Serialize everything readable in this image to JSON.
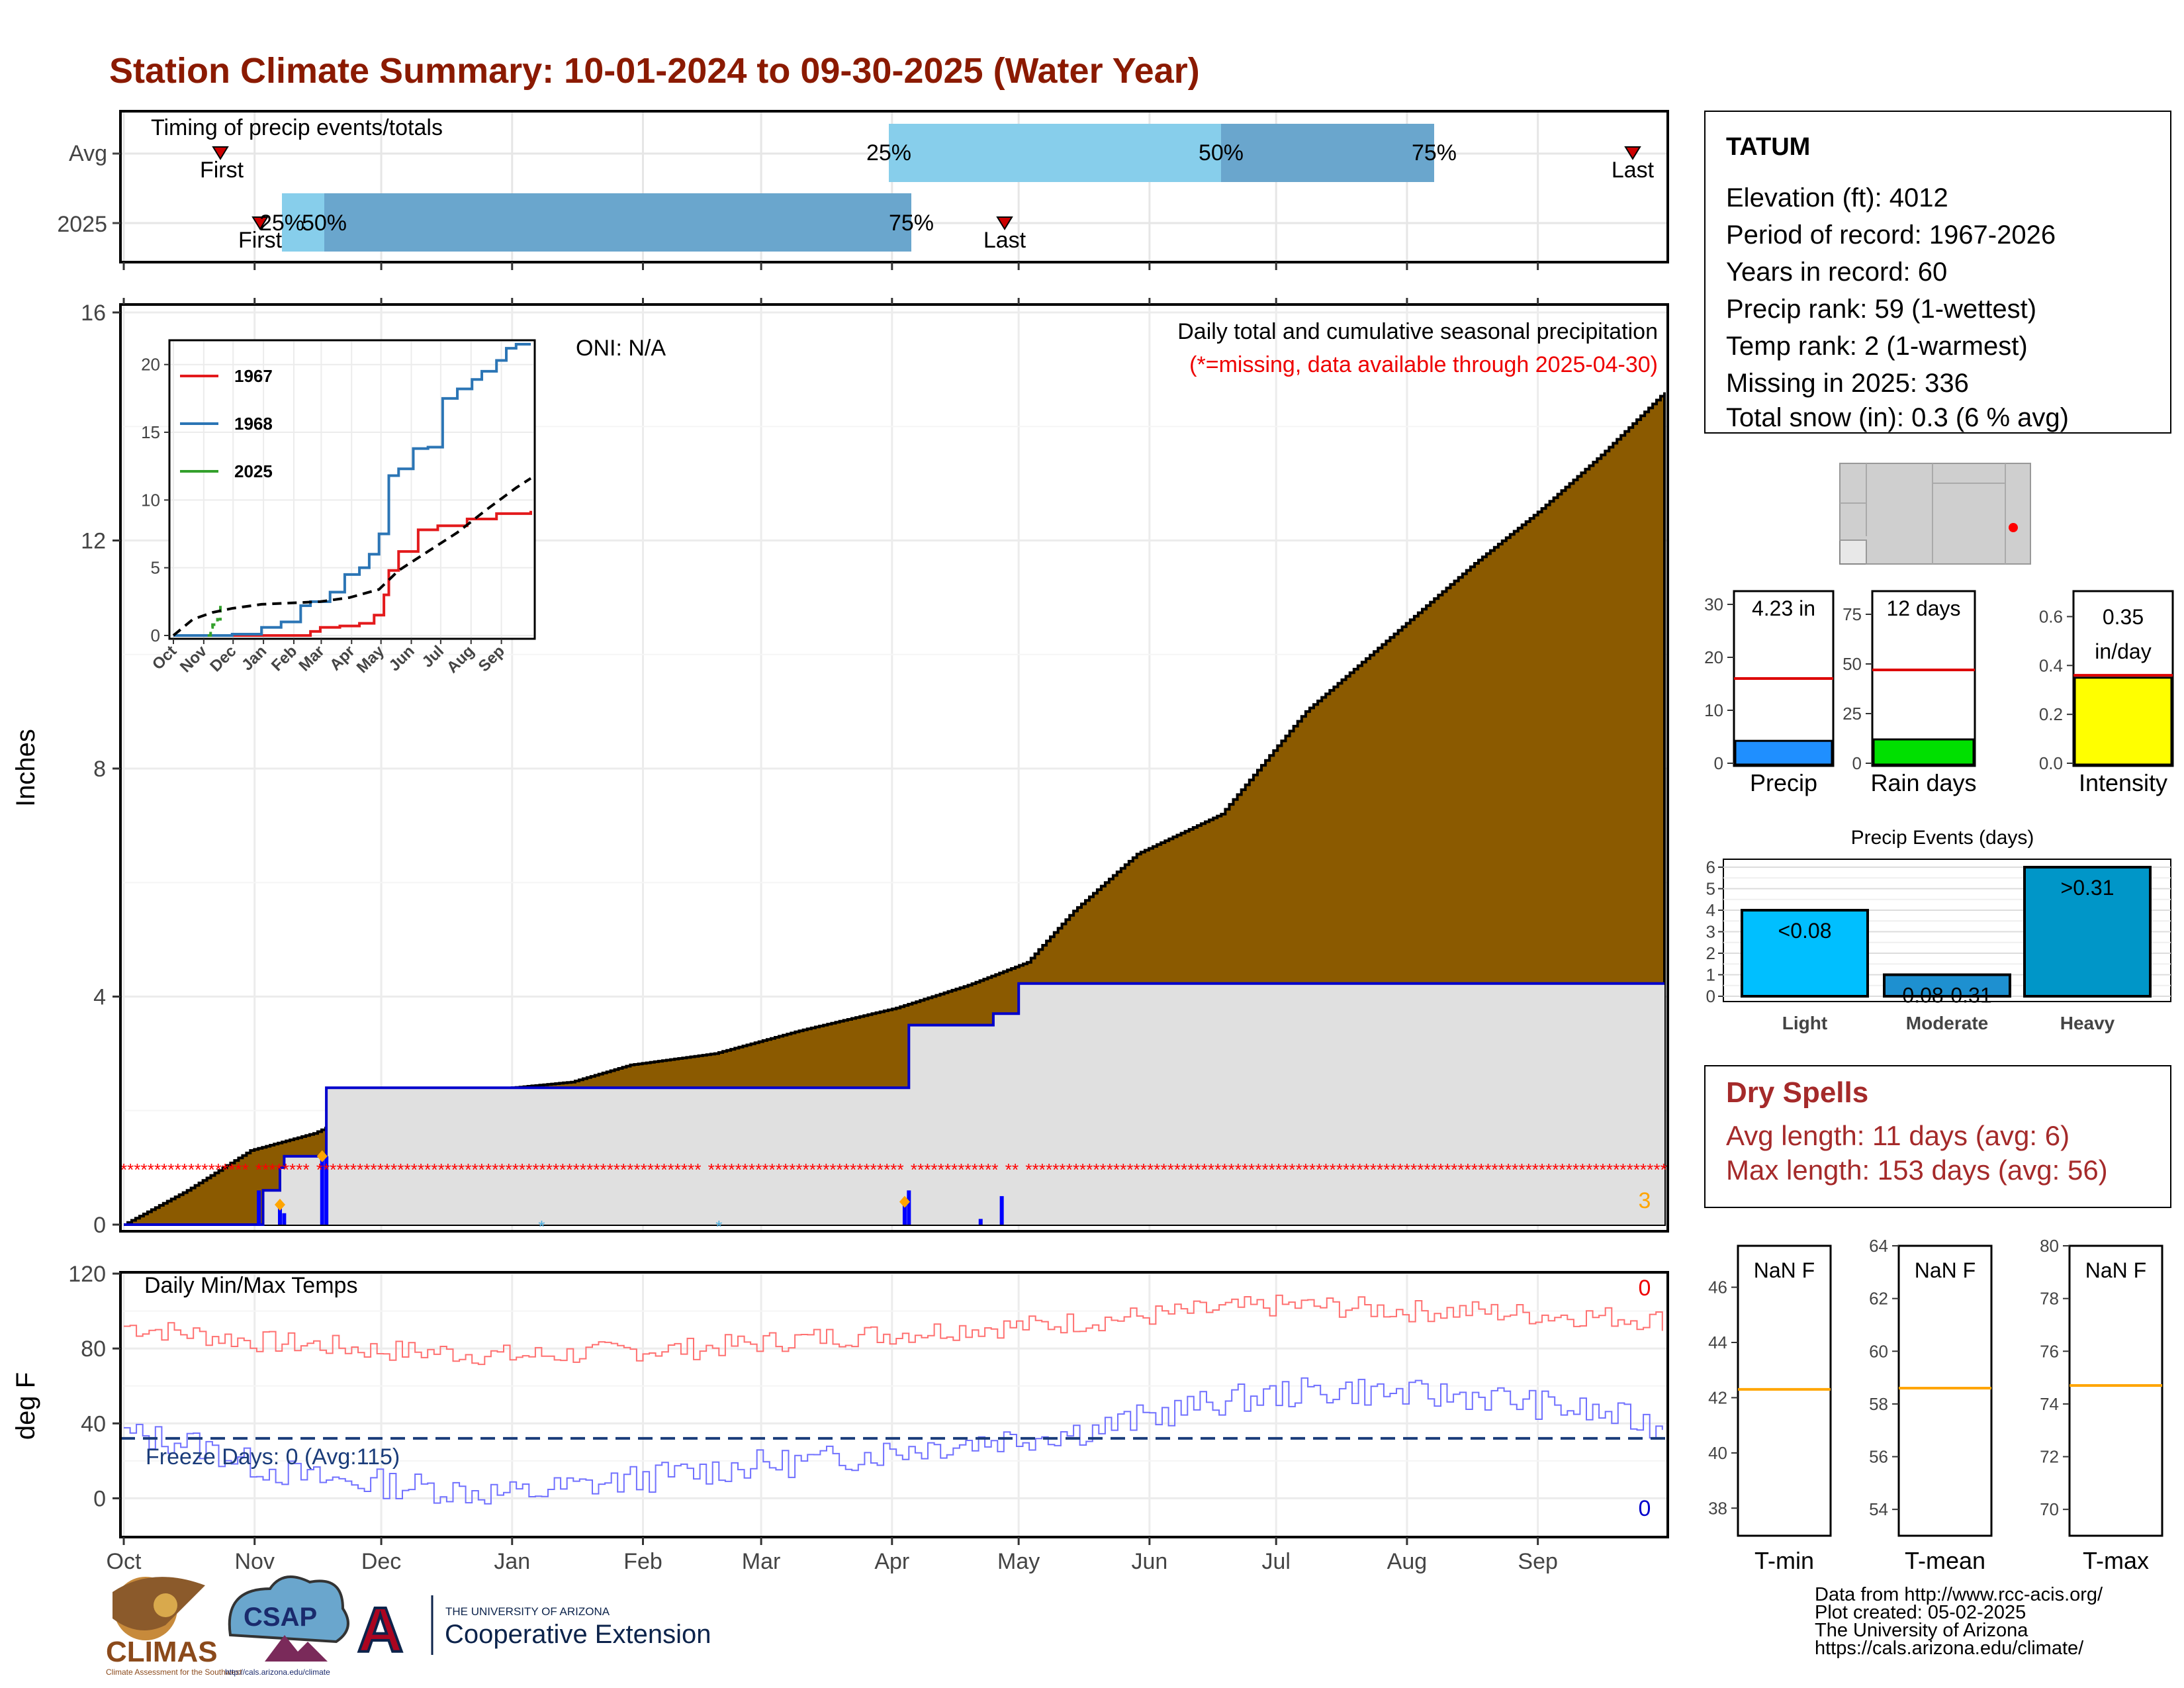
{
  "title": "Station Climate Summary: 10-01-2024 to 09-30-2025 (Water Year)",
  "colors": {
    "title": "#8b1a00",
    "cum_avg": "#8b5a00",
    "cum_2025_above": "#008000",
    "cum_2025_line": "#0000cc",
    "missing": "#ff0000",
    "tmax": "#ff6666",
    "tmin": "#6666ff",
    "dry": "#a52a2a"
  },
  "months": [
    "Oct",
    "Nov",
    "Dec",
    "Jan",
    "Feb",
    "Mar",
    "Apr",
    "May",
    "Jun",
    "Jul",
    "Aug",
    "Sep"
  ],
  "timing": {
    "label": "Timing of precip events/totals",
    "rows": [
      "Avg",
      "2025"
    ],
    "avg": {
      "first": "First",
      "last": "Last",
      "p25": "25%",
      "p50": "50%",
      "p75": "75%"
    },
    "y2025": {
      "first": "First",
      "last": "Last",
      "p25": "25%",
      "p50": "50%",
      "p75": "75%"
    }
  },
  "precip_panel": {
    "ylabel": "Inches",
    "yticks": [
      "0",
      "4",
      "8",
      "12",
      "16"
    ],
    "heading": "Daily total and cumulative seasonal precipitation",
    "missing_note": "(*=missing, data available through 2025-04-30)",
    "oni": "ONI: N/A",
    "count_label": "3"
  },
  "chart_data": [
    {
      "type": "area",
      "name": "cumulative precipitation",
      "x_unit": "day of water year",
      "avg_cumulative": {
        "x": [
          0,
          15,
          30,
          45,
          60,
          75,
          92,
          106,
          120,
          140,
          160,
          183,
          200,
          214,
          225,
          240,
          260,
          280,
          300,
          320,
          335,
          350,
          365
        ],
        "y": [
          0,
          0.6,
          1.3,
          1.6,
          2.1,
          2.3,
          2.4,
          2.5,
          2.8,
          3.0,
          3.4,
          3.8,
          4.2,
          4.6,
          5.5,
          6.5,
          7.2,
          9.0,
          10.3,
          11.6,
          12.5,
          13.5,
          14.6
        ]
      },
      "y2025_cumulative": {
        "x": [
          0,
          32,
          33,
          35,
          37,
          38,
          43,
          47,
          48,
          185,
          186,
          203,
          206,
          208,
          212,
          365
        ],
        "y": [
          0,
          0,
          0.6,
          0.6,
          1.0,
          1.2,
          1.2,
          1.2,
          2.4,
          2.4,
          3.5,
          3.5,
          3.7,
          3.7,
          4.23,
          4.23
        ]
      },
      "ylim": [
        0,
        16
      ]
    },
    {
      "type": "line",
      "name": "inset cumulative",
      "series": [
        {
          "name": "1967",
          "x": [
            0,
            120,
            140,
            150,
            160,
            170,
            190,
            205,
            215,
            220,
            230,
            250,
            270,
            300,
            330,
            365
          ],
          "y": [
            0,
            0,
            0.3,
            0.6,
            0.6,
            0.7,
            0.9,
            1.5,
            3.0,
            4.8,
            6.2,
            7.8,
            8.1,
            8.6,
            9.0,
            9.2
          ]
        },
        {
          "name": "1968",
          "x": [
            0,
            60,
            90,
            110,
            130,
            140,
            160,
            175,
            190,
            200,
            210,
            220,
            230,
            245,
            260,
            275,
            290,
            305,
            315,
            330,
            340,
            350,
            365
          ],
          "y": [
            0,
            0.1,
            0.6,
            1.0,
            2.2,
            2.5,
            3.2,
            4.5,
            5.0,
            6.0,
            7.5,
            11.8,
            12.3,
            13.8,
            13.9,
            17.5,
            18.2,
            18.9,
            19.5,
            20.3,
            21.2,
            21.5,
            21.5
          ]
        },
        {
          "name": "2025",
          "x": [
            35,
            38,
            40,
            45,
            48
          ],
          "y": [
            0.0,
            0.6,
            0.8,
            1.2,
            2.4
          ]
        },
        {
          "name": "",
          "dashed": true,
          "x": [
            0,
            20,
            40,
            60,
            90,
            120,
            150,
            180,
            210,
            230,
            260,
            290,
            320,
            350,
            365
          ],
          "y": [
            0,
            1.2,
            1.7,
            2.0,
            2.3,
            2.4,
            2.5,
            2.8,
            3.4,
            4.8,
            6.2,
            7.6,
            9.3,
            10.9,
            11.6
          ]
        }
      ],
      "ylim": [
        0,
        21.5
      ],
      "yticks": [
        "0",
        "5",
        "10",
        "15",
        "20"
      ],
      "xticks": [
        "Oct",
        "Nov",
        "Dec",
        "Jan",
        "Feb",
        "Mar",
        "Apr",
        "May",
        "Jun",
        "Jul",
        "Aug",
        "Sep"
      ]
    },
    {
      "type": "line",
      "name": "Daily Min/Max Temps",
      "tmax": {
        "x": [
          0,
          15,
          30,
          45,
          60,
          75,
          92,
          106,
          120,
          135,
          150,
          165,
          183,
          200,
          214,
          230,
          245,
          260,
          275,
          290,
          305,
          320,
          335,
          350,
          365
        ],
        "y": [
          92,
          88,
          84,
          82,
          79,
          78,
          76,
          77,
          79,
          80,
          83,
          86,
          88,
          91,
          92,
          95,
          98,
          101,
          103,
          102,
          100,
          100,
          98,
          97,
          95
        ]
      },
      "tmin": {
        "x": [
          0,
          15,
          30,
          45,
          60,
          75,
          92,
          106,
          120,
          135,
          150,
          165,
          183,
          200,
          214,
          230,
          245,
          260,
          275,
          290,
          305,
          320,
          335,
          350,
          365
        ],
        "y": [
          34,
          30,
          18,
          10,
          8,
          5,
          2,
          6,
          10,
          14,
          18,
          20,
          26,
          30,
          33,
          37,
          45,
          52,
          56,
          58,
          55,
          55,
          50,
          45,
          38
        ]
      },
      "freeze_line": 32,
      "ylim": [
        -20,
        120
      ]
    }
  ],
  "temps_panel": {
    "label": "Daily Min/Max Temps",
    "ylabel": "deg F",
    "yticks": [
      "0",
      "40",
      "80",
      "120"
    ],
    "freeze_label": "Freeze Days: 0 (Avg:115)",
    "tmax_missing_count": "0",
    "tmin_missing_count": "0"
  },
  "station": {
    "name": "TATUM",
    "lines": [
      "Elevation (ft): 4012",
      "Period of record: 1967-2026",
      "Years in record: 60",
      "Precip rank: 59 (1-wettest)",
      "Temp rank: 2 (1-warmest)",
      "Missing in 2025: 336",
      "Total snow (in): 0.3 (6 % avg)"
    ]
  },
  "bars": [
    {
      "name": "Precip",
      "value_label": "4.23 in",
      "value": 4.23,
      "avg": 16,
      "ymax": 30,
      "yticks": [
        "0",
        "10",
        "20",
        "30"
      ],
      "color": "#1f8fff"
    },
    {
      "name": "Rain days",
      "value_label": "12 days",
      "value": 12,
      "avg": 47,
      "ymax": 80,
      "yticks": [
        "0",
        "25",
        "50",
        "75"
      ],
      "color": "#00e000"
    },
    {
      "name": "Intensity",
      "value_label": "0.35 in/day",
      "value": 0.35,
      "avg": 0.36,
      "ymax": 0.65,
      "yticks": [
        "0.0",
        "0.2",
        "0.4",
        "0.6"
      ],
      "color": "#ffff00"
    }
  ],
  "events": {
    "title": "Precip Events (days)",
    "yticks": [
      "0",
      "1",
      "2",
      "3",
      "4",
      "5",
      "6"
    ],
    "categories": [
      "Light",
      "Moderate",
      "Heavy"
    ],
    "labels": [
      "<0.08",
      "0.08-0.31",
      ">0.31"
    ],
    "values": [
      4,
      1,
      6
    ],
    "colors": [
      "#00bfff",
      "#1e90d0",
      "#0096c8"
    ]
  },
  "dry": {
    "title": "Dry Spells",
    "avg": "Avg length: 11 days (avg: 6)",
    "max": "Max length: 153 days (avg: 56)"
  },
  "temp_boxes": [
    {
      "name": "T-min",
      "value_label": "NaN F",
      "yticks": [
        "38",
        "40",
        "42",
        "44",
        "46"
      ],
      "ymin": 37,
      "ymax": 47.5,
      "avg": 42.3
    },
    {
      "name": "T-mean",
      "value_label": "NaN F",
      "yticks": [
        "54",
        "56",
        "58",
        "60",
        "62",
        "64"
      ],
      "ymin": 53,
      "ymax": 64,
      "avg": 58.6
    },
    {
      "name": "T-max",
      "value_label": "NaN F",
      "yticks": [
        "70",
        "72",
        "74",
        "76",
        "78",
        "80"
      ],
      "ymin": 69,
      "ymax": 80,
      "avg": 74.7
    }
  ],
  "footer": {
    "credits": [
      "Data from http://www.rcc-acis.org/",
      "Plot created: 05-02-2025",
      "The University of Arizona",
      "https://cals.arizona.edu/climate/"
    ],
    "climas": "CLIMAS",
    "climas_sub": "Climate Assessment for the Southwest",
    "csap": "CSAP",
    "csap_url": "http://cals.arizona.edu/climate",
    "ua_small": "THE UNIVERSITY OF ARIZONA",
    "ua_big": "Cooperative Extension",
    "ua_logo": "A"
  }
}
